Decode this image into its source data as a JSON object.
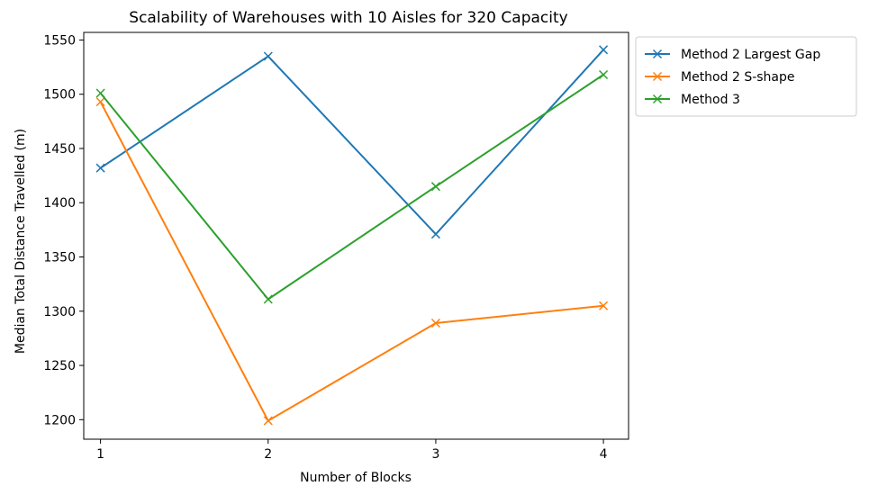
{
  "chart_data": {
    "type": "line",
    "title": "Scalability of Warehouses with 10 Aisles for 320 Capacity",
    "xlabel": "Number of Blocks",
    "ylabel": "Median Total Distance Travelled (m)",
    "x": [
      1,
      2,
      3,
      4
    ],
    "x_ticks": [
      1,
      2,
      3,
      4
    ],
    "y_ticks": [
      1200,
      1250,
      1300,
      1350,
      1400,
      1450,
      1500,
      1550
    ],
    "xlim": [
      0.9,
      4.15
    ],
    "ylim": [
      1182,
      1557
    ],
    "grid": false,
    "legend_position": "outside-top-right",
    "marker": "x",
    "series": [
      {
        "name": "Method 2 Largest Gap",
        "color": "#1f77b4",
        "values": [
          1432,
          1535,
          1371,
          1541
        ]
      },
      {
        "name": "Method 2 S-shape",
        "color": "#ff7f0e",
        "values": [
          1493,
          1199,
          1289,
          1305
        ]
      },
      {
        "name": "Method 3",
        "color": "#2ca02c",
        "values": [
          1501,
          1311,
          1415,
          1518
        ]
      }
    ]
  }
}
